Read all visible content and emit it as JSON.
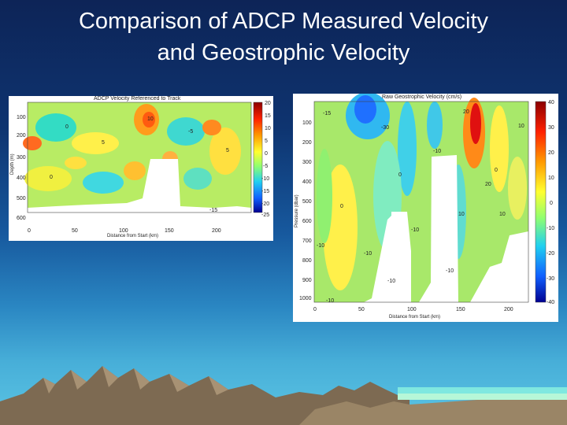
{
  "slide": {
    "title_line1": "Comparison of ADCP Measured Velocity",
    "title_line2": "and Geostrophic Velocity"
  },
  "left_plot": {
    "title": "ADCP Velocity Referenced to Track",
    "ylabel": "Depth (m)",
    "xlabel": "Distance from Start (km)",
    "y_ticks": [
      "100",
      "200",
      "300",
      "400",
      "500",
      "600"
    ],
    "x_ticks": [
      "0",
      "50",
      "100",
      "150",
      "200"
    ],
    "colorbar_ticks": [
      "20",
      "15",
      "10",
      "5",
      "0",
      "-5",
      "-10",
      "-15",
      "-20",
      "-25"
    ],
    "contour_labels": [
      "0",
      "5",
      "-5",
      "10",
      "0",
      "-15",
      "5"
    ]
  },
  "right_plot": {
    "title": "Raw Geostrophic Velocity (cm/s)",
    "ylabel": "Pressure (dbar)",
    "xlabel": "Distance from Start (km)",
    "y_ticks": [
      "100",
      "200",
      "300",
      "400",
      "500",
      "600",
      "700",
      "800",
      "900",
      "1000"
    ],
    "x_ticks": [
      "0",
      "50",
      "100",
      "150",
      "200"
    ],
    "colorbar_ticks": [
      "40",
      "30",
      "20",
      "10",
      "0",
      "-10",
      "-20",
      "-30",
      "-40"
    ],
    "contour_labels": [
      "-15",
      "10",
      "-10",
      "0",
      "-10",
      "0",
      "-10",
      "20",
      "-10",
      "10",
      "10",
      "20",
      "-30",
      "-10",
      "-10",
      "-10",
      "0"
    ]
  },
  "colors": {
    "background_top": "#0d2457",
    "background_bottom": "#5cc6e4",
    "title_text": "#ffffff"
  }
}
